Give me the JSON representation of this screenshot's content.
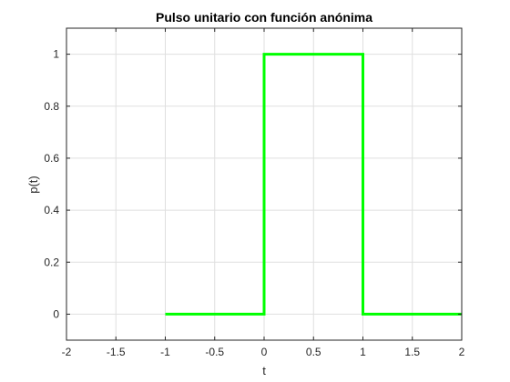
{
  "chart_data": {
    "type": "line",
    "title": "Pulso unitario con función anónima",
    "xlabel": "t",
    "ylabel": "p(t)",
    "xlim": [
      -2,
      2
    ],
    "ylim": [
      -0.1,
      1.1
    ],
    "xticks": [
      -2,
      -1.5,
      -1,
      -0.5,
      0,
      0.5,
      1,
      1.5,
      2
    ],
    "xtick_labels": [
      "-2",
      "-1.5",
      "-1",
      "-0.5",
      "0",
      "0.5",
      "1",
      "1.5",
      "2"
    ],
    "yticks": [
      0,
      0.2,
      0.4,
      0.6,
      0.8,
      1
    ],
    "ytick_labels": [
      "0",
      "0.2",
      "0.4",
      "0.6",
      "0.8",
      "1"
    ],
    "grid": true,
    "series": [
      {
        "color": "#00ff00",
        "x": [
          -1,
          0,
          0,
          1,
          1,
          2
        ],
        "y": [
          0,
          0,
          1,
          1,
          0,
          0
        ]
      }
    ]
  }
}
